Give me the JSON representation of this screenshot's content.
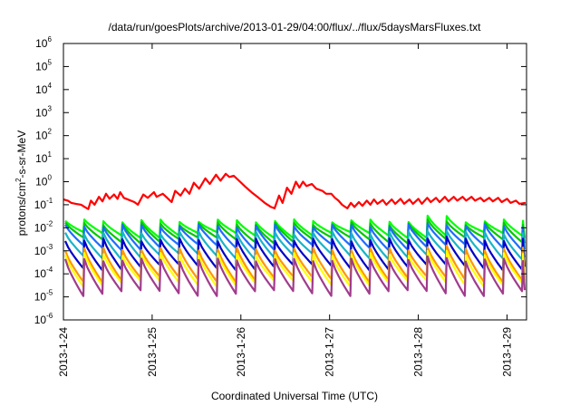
{
  "chart_data": {
    "type": "line",
    "title": "/data/run/goesPlots/archive/2013-01-29/04:00/flux/../flux/5daysMarsFluxes.txt",
    "xlabel": "Coordinated Universal Time (UTC)",
    "ylabel": "protons/cm²-s-sr-MeV",
    "ylabel_parts": {
      "before": "protons/cm",
      "sup": "2",
      "after": "-s-sr-MeV"
    },
    "yscale": "log",
    "ylim_exponents": [
      -6,
      6
    ],
    "y_tick_base": "10",
    "y_tick_exponents": [
      "-6",
      "-5",
      "-4",
      "-3",
      "-2",
      "-1",
      "0",
      "1",
      "2",
      "3",
      "4",
      "5",
      "6"
    ],
    "xlim_days": [
      "2013-01-24",
      "2013-01-29 ~05:00"
    ],
    "x_tick_labels": [
      "2013-1-24",
      "2013-1-25",
      "2013-1-26",
      "2013-1-27",
      "2013-1-28",
      "2013-1-29"
    ],
    "grid": false,
    "legend": "none",
    "approx_daily_values": {
      "note_dates": [
        "2013-01-24",
        "2013-01-25",
        "2013-01-26",
        "2013-01-27",
        "2013-01-28",
        "2013-01-29"
      ]
    },
    "series": [
      {
        "color": "#ff0000",
        "start": 0.17,
        "sawtooth": [
          [
            0.05,
            0.15
          ],
          [
            0.09,
            0.12
          ],
          [
            0.14,
            0.11
          ],
          [
            0.2,
            0.1
          ],
          [
            0.24,
            0.08
          ],
          [
            0.28,
            0.065
          ],
          [
            0.31,
            0.15
          ],
          [
            0.35,
            0.1
          ],
          [
            0.4,
            0.22
          ],
          [
            0.44,
            0.14
          ],
          [
            0.48,
            0.3
          ],
          [
            0.52,
            0.18
          ],
          [
            0.57,
            0.28
          ],
          [
            0.61,
            0.18
          ],
          [
            0.64,
            0.35
          ],
          [
            0.68,
            0.2
          ],
          [
            0.8,
            0.13
          ],
          [
            0.84,
            0.1
          ],
          [
            0.9,
            0.28
          ],
          [
            0.95,
            0.2
          ],
          [
            1.02,
            0.35
          ],
          [
            1.05,
            0.22
          ],
          [
            1.12,
            0.3
          ],
          [
            1.17,
            0.2
          ],
          [
            1.22,
            0.13
          ],
          [
            1.26,
            0.4
          ],
          [
            1.32,
            0.25
          ],
          [
            1.37,
            0.5
          ],
          [
            1.42,
            0.3
          ],
          [
            1.47,
            0.9
          ],
          [
            1.53,
            0.5
          ],
          [
            1.6,
            1.4
          ],
          [
            1.65,
            0.8
          ],
          [
            1.72,
            2.0
          ],
          [
            1.77,
            1.1
          ],
          [
            1.83,
            2.2
          ],
          [
            1.87,
            1.6
          ],
          [
            1.92,
            1.8
          ],
          [
            1.97,
            1.2
          ],
          [
            2.05,
            0.6
          ],
          [
            2.12,
            0.35
          ],
          [
            2.2,
            0.2
          ],
          [
            2.27,
            0.12
          ],
          [
            2.34,
            0.08
          ],
          [
            2.38,
            0.07
          ],
          [
            2.43,
            0.25
          ],
          [
            2.47,
            0.12
          ],
          [
            2.52,
            0.55
          ],
          [
            2.57,
            0.3
          ],
          [
            2.62,
            1.0
          ],
          [
            2.66,
            0.55
          ],
          [
            2.7,
            1.0
          ],
          [
            2.74,
            0.65
          ],
          [
            2.8,
            0.8
          ],
          [
            2.85,
            0.5
          ],
          [
            2.92,
            0.4
          ],
          [
            2.96,
            0.3
          ],
          [
            3.02,
            0.3
          ],
          [
            3.06,
            0.2
          ],
          [
            3.1,
            0.15
          ],
          [
            3.14,
            0.1
          ],
          [
            3.2,
            0.07
          ],
          [
            3.24,
            0.12
          ],
          [
            3.28,
            0.08
          ],
          [
            3.33,
            0.13
          ],
          [
            3.37,
            0.09
          ],
          [
            3.42,
            0.15
          ],
          [
            3.46,
            0.1
          ],
          [
            3.5,
            0.17
          ],
          [
            3.54,
            0.11
          ],
          [
            3.6,
            0.16
          ],
          [
            3.64,
            0.1
          ],
          [
            3.7,
            0.17
          ],
          [
            3.74,
            0.11
          ],
          [
            3.8,
            0.18
          ],
          [
            3.84,
            0.11
          ],
          [
            3.9,
            0.17
          ],
          [
            3.94,
            0.11
          ],
          [
            4.0,
            0.18
          ],
          [
            4.04,
            0.11
          ],
          [
            4.1,
            0.2
          ],
          [
            4.14,
            0.13
          ],
          [
            4.2,
            0.2
          ],
          [
            4.24,
            0.13
          ],
          [
            4.3,
            0.22
          ],
          [
            4.34,
            0.14
          ],
          [
            4.4,
            0.22
          ],
          [
            4.44,
            0.15
          ],
          [
            4.5,
            0.22
          ],
          [
            4.54,
            0.15
          ],
          [
            4.6,
            0.22
          ],
          [
            4.64,
            0.15
          ],
          [
            4.7,
            0.2
          ],
          [
            4.74,
            0.14
          ],
          [
            4.8,
            0.2
          ],
          [
            4.84,
            0.14
          ],
          [
            4.9,
            0.2
          ],
          [
            4.94,
            0.13
          ],
          [
            5.0,
            0.18
          ],
          [
            5.04,
            0.12
          ],
          [
            5.1,
            0.15
          ],
          [
            5.14,
            0.11
          ],
          [
            5.2,
            0.12
          ]
        ],
        "end": 0.11
      },
      {
        "color": "#00ff00",
        "base_low": 0.005,
        "peak": 0.02,
        "late_peak": 0.03
      },
      {
        "color": "#00c800",
        "base_low": 0.003,
        "peak": 0.015,
        "late_peak": 0.02
      },
      {
        "color": "#1e6cff",
        "base_low": 0.0015,
        "peak": 0.012,
        "late_peak": 0.015
      },
      {
        "color": "#19b4c8",
        "base_low": 0.0006,
        "peak": 0.006,
        "late_peak": 0.008
      },
      {
        "color": "#0000c8",
        "base_low": 0.0002,
        "peak": 0.003,
        "late_peak": 0.004
      },
      {
        "color": "#ff9600",
        "base_low": 6e-05,
        "peak": 0.0012,
        "late_peak": 0.0015
      },
      {
        "color": "#ffff00",
        "base_low": 4e-05,
        "peak": 0.0007,
        "late_peak": 0.0009
      },
      {
        "color": "#a03c8c",
        "base_low": 1.5e-05,
        "peak": 0.0004,
        "late_peak": 0.0005
      }
    ]
  }
}
